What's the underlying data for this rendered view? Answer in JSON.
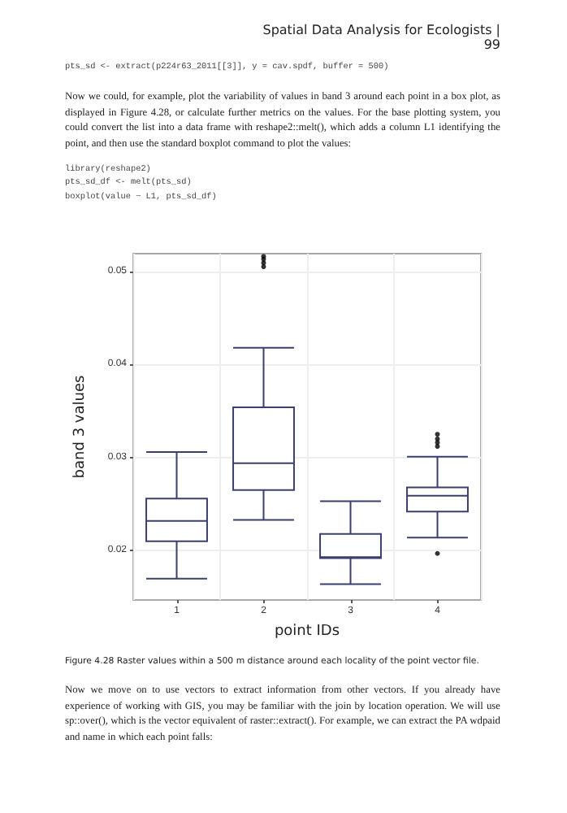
{
  "chart_data": {
    "type": "box",
    "xlabel": "point IDs",
    "ylabel": "band 3 values",
    "categories": [
      "1",
      "2",
      "3",
      "4"
    ],
    "color": "#3b3f6e",
    "boxes": [
      {
        "low": 0.017,
        "q1": 0.021,
        "median": 0.0232,
        "q3": 0.0256,
        "high": 0.0306
      },
      {
        "low": 0.0233,
        "q1": 0.0265,
        "median": 0.0294,
        "q3": 0.0354,
        "high": 0.0418,
        "outliers": [
          0.0516,
          0.0513,
          0.0509,
          0.0505
        ]
      },
      {
        "low": 0.0164,
        "q1": 0.0192,
        "median": 0.0193,
        "q3": 0.0218,
        "high": 0.0253
      },
      {
        "low": 0.0214,
        "q1": 0.0242,
        "median": 0.0259,
        "q3": 0.0268,
        "high": 0.0301,
        "outliers": [
          0.0325,
          0.032,
          0.0316,
          0.0312,
          0.0197
        ]
      }
    ],
    "ylim": [
      0.0147,
      0.0519
    ],
    "yticks": [
      0.02,
      0.03,
      0.04,
      0.05
    ],
    "grid": true,
    "annotations": [
      "Spatial Data Analysis for Ecologists | 99",
      "pts_sd <- extract(p224r63_2011[[3]], y = cav.spdf, buffer = 500)",
      "Now we could, for example, plot the variability of values in band 3 around each point in a box plot, as displayed in Figure 4.28, or calculate further metrics on the values. For the base plotting system, you could convert the list into a data frame with reshape2::melt(), which adds a column L1 identifying the point, and then use the standard boxplot command to plot the values:",
      "library(reshape2)\npts_sd_df <- melt(pts_sd)\nboxplot(value ~ L1, pts_sd_df)",
      "Figure 4.28 Raster values within a 500 m distance around each locality of the point vector file.",
      "Now we move on to use vectors to extract information from other vectors. If you already have experience of working with GIS, you may be familiar with the join by location operation. We will use sp::over(), which is the vector equivalent of raster::extract(). For example, we can extract the PA wdpaid and name in which each point falls:"
    ]
  }
}
